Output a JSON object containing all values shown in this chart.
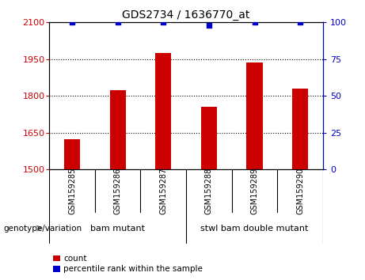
{
  "title": "GDS2734 / 1636770_at",
  "categories": [
    "GSM159285",
    "GSM159286",
    "GSM159287",
    "GSM159288",
    "GSM159289",
    "GSM159290"
  ],
  "bar_values": [
    1622,
    1822,
    1975,
    1755,
    1935,
    1830
  ],
  "percentile_values": [
    100,
    100,
    100,
    98,
    100,
    100
  ],
  "bar_color": "#cc0000",
  "percentile_color": "#0000cc",
  "ylim_left": [
    1500,
    2100
  ],
  "ylim_right": [
    0,
    100
  ],
  "yticks_left": [
    1500,
    1650,
    1800,
    1950,
    2100
  ],
  "yticks_right": [
    0,
    25,
    50,
    75,
    100
  ],
  "groups": [
    {
      "label": "bam mutant",
      "start": 0,
      "end": 3
    },
    {
      "label": "stwl bam double mutant",
      "start": 3,
      "end": 6
    }
  ],
  "group_color": "#77ee77",
  "group_label_prefix": "genotype/variation",
  "legend_count_label": "count",
  "legend_percentile_label": "percentile rank within the sample",
  "bar_width": 0.35,
  "background_color": "#ffffff",
  "plot_bg_color": "#ffffff",
  "tick_area_color": "#d3d3d3"
}
